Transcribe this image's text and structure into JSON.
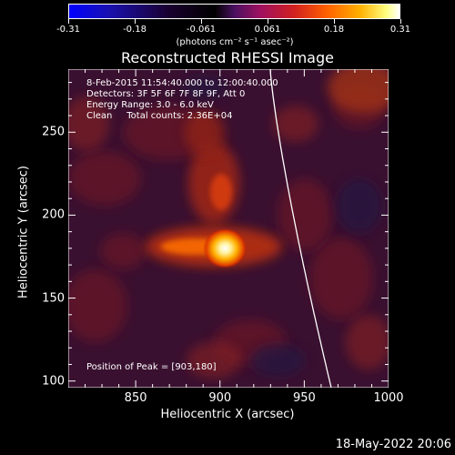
{
  "title": "Reconstructed RHESSI Image",
  "colorbar": {
    "labels": [
      "-0.31",
      "-0.18",
      "-0.061",
      "0.061",
      "0.18",
      "0.31"
    ],
    "units": "(photons cm⁻² s⁻¹ asec⁻²)",
    "range": [
      -0.31,
      0.31
    ]
  },
  "info": {
    "time": "8-Feb-2015 11:54:40.000 to 12:00:40.000",
    "detectors": "Detectors: 3F 5F 6F 7F 8F 9F, Att 0",
    "energy": "Energy Range: 3.0 - 6.0 keV",
    "clean": "Clean     Total counts: 2.36E+04"
  },
  "peak_text": "Position of Peak = [903,180]",
  "x_axis": {
    "label": "Heliocentric X (arcsec)",
    "ticks": [
      "850",
      "900",
      "950",
      "1000"
    ],
    "range": [
      810,
      1000
    ]
  },
  "y_axis": {
    "label": "Heliocentric Y (arcsec)",
    "ticks": [
      "100",
      "150",
      "200",
      "250"
    ],
    "range": [
      96,
      288
    ]
  },
  "footer_date": "18-May-2022 20:06",
  "colors": {
    "colormap": "blue-black-purple-red-yellow-white",
    "limb": "#ffffff"
  },
  "peak_position": [
    903,
    180
  ]
}
